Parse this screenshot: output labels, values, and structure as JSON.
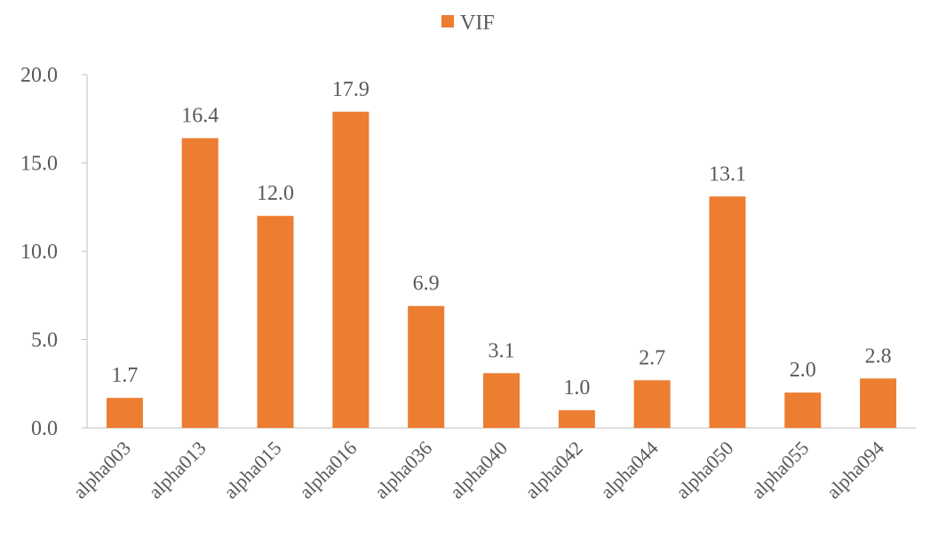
{
  "chart_data": {
    "type": "bar",
    "title": "",
    "xlabel": "",
    "ylabel": "",
    "ylim": [
      0,
      20
    ],
    "yticks": [
      "0.0",
      "5.0",
      "10.0",
      "15.0",
      "20.0"
    ],
    "grid": false,
    "legend_position": "top-center",
    "categories": [
      "alpha003",
      "alpha013",
      "alpha015",
      "alpha016",
      "alpha036",
      "alpha040",
      "alpha042",
      "alpha044",
      "alpha050",
      "alpha055",
      "alpha094"
    ],
    "series": [
      {
        "name": "VIF",
        "color": "#ED7D31",
        "values": [
          1.7,
          16.4,
          12.0,
          17.9,
          6.9,
          3.1,
          1.0,
          2.7,
          13.1,
          2.0,
          2.8
        ],
        "labels": [
          "1.7",
          "16.4",
          "12.0",
          "17.9",
          "6.9",
          "3.1",
          "1.0",
          "2.7",
          "13.1",
          "2.0",
          "2.8"
        ]
      }
    ]
  }
}
